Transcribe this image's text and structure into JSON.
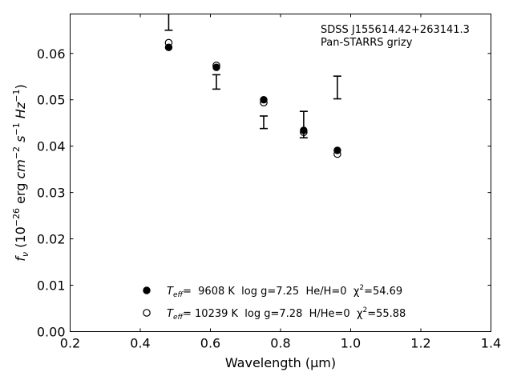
{
  "chart_data": {
    "type": "scatter",
    "annotation_lines": [
      "SDSS J155614.42+263141.3",
      "Pan-STARRS grizy"
    ],
    "xlabel": "Wavelength (μm)",
    "ylabel": "f_ν (10^-26 erg cm^-2 s^-1 Hz^-1)",
    "xlim": [
      0.2,
      1.4
    ],
    "ylim": [
      0.0,
      0.0685
    ],
    "x_ticks": [
      "0.2",
      "0.4",
      "0.6",
      "0.8",
      "1.0",
      "1.2",
      "1.4"
    ],
    "y_ticks": [
      "0.00",
      "0.01",
      "0.02",
      "0.03",
      "0.04",
      "0.05",
      "0.06"
    ],
    "grid": false,
    "legend_position": "bottom-center",
    "observed": {
      "x": [
        0.481,
        0.617,
        0.752,
        0.866,
        0.962
      ],
      "y_low": [
        0.065,
        0.0523,
        0.0438,
        0.0418,
        0.0502
      ],
      "y_high": [
        0.07,
        0.0554,
        0.0465,
        0.0475,
        0.0551
      ]
    },
    "series": [
      {
        "name_parts": [
          "T",
          "eff",
          "=  9608 K  log g=7.25  He/H=0  χ",
          "2",
          "=54.69"
        ],
        "marker": "filled",
        "x": [
          0.481,
          0.617,
          0.752,
          0.866,
          0.962
        ],
        "y": [
          0.0613,
          0.057,
          0.05,
          0.0434,
          0.0391
        ]
      },
      {
        "name_parts": [
          "T",
          "eff",
          "= 10239 K  log g=7.28  H/He=0  χ",
          "2",
          "=55.88"
        ],
        "marker": "open",
        "x": [
          0.481,
          0.617,
          0.752,
          0.866,
          0.962
        ],
        "y": [
          0.0623,
          0.0574,
          0.0494,
          0.043,
          0.0383
        ]
      }
    ]
  }
}
